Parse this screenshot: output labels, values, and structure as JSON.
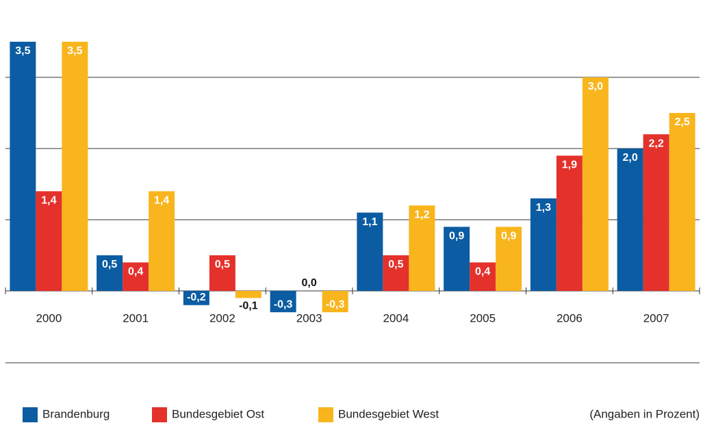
{
  "chart_data": {
    "type": "bar",
    "categories": [
      "2000",
      "2001",
      "2002",
      "2003",
      "2004",
      "2005",
      "2006",
      "2007"
    ],
    "series": [
      {
        "name": "Brandenburg",
        "color": "#0b5ca2",
        "values": [
          3.5,
          0.5,
          -0.2,
          -0.3,
          1.1,
          0.9,
          1.3,
          2.0
        ],
        "value_labels": [
          "3,5",
          "0,5",
          "-0,2",
          "-0,3",
          "1,1",
          "0,9",
          "1,3",
          "2,0"
        ]
      },
      {
        "name": "Bundesgebiet Ost",
        "color": "#e4312b",
        "values": [
          1.4,
          0.4,
          0.5,
          0.0,
          0.5,
          0.4,
          1.9,
          2.2
        ],
        "value_labels": [
          "1,4",
          "0,4",
          "0,5",
          "0,0",
          "0,5",
          "0,4",
          "1,9",
          "2,2"
        ]
      },
      {
        "name": "Bundesgebiet West",
        "color": "#f9b51d",
        "values": [
          3.5,
          1.4,
          -0.1,
          -0.3,
          1.2,
          0.9,
          3.0,
          2.5
        ],
        "value_labels": [
          "3,5",
          "1,4",
          "-0,1",
          "-0,3",
          "1,2",
          "0,9",
          "3,0",
          "2,5"
        ]
      }
    ],
    "ylim": [
      -1,
      4
    ],
    "yticks": [
      0,
      1,
      2,
      3
    ],
    "grid": true,
    "legend": "bottom",
    "note": "(Angaben in Prozent)"
  }
}
